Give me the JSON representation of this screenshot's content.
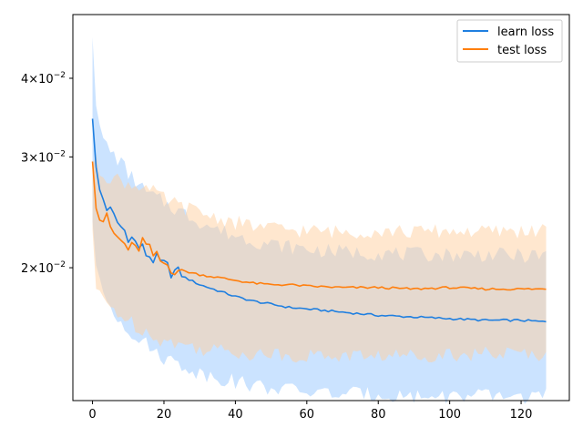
{
  "chart_data": {
    "type": "line",
    "xlabel": "",
    "ylabel": "",
    "xlim": [
      -5.5,
      133.5
    ],
    "ylim": [
      0.0123,
      0.0505
    ],
    "yscale": "log",
    "x_ticks": [
      0,
      20,
      40,
      60,
      80,
      100,
      120
    ],
    "x_tick_labels": [
      "0",
      "20",
      "40",
      "60",
      "80",
      "100",
      "120"
    ],
    "y_ticks": [
      0.02,
      0.03,
      0.04
    ],
    "y_tick_labels": [
      {
        "mantissa": "2",
        "times": "×",
        "base": "10",
        "exp": "−2"
      },
      {
        "mantissa": "3",
        "times": "×",
        "base": "10",
        "exp": "−2"
      },
      {
        "mantissa": "4",
        "times": "×",
        "base": "10",
        "exp": "−2"
      }
    ],
    "grid": false,
    "legend": {
      "position": "top-right"
    },
    "x_range": [
      0,
      127
    ],
    "series": [
      {
        "name": "learn loss",
        "color": "#1f7fe0",
        "band_color": "#a8d0ff",
        "anchors_x": [
          0,
          1,
          2,
          4,
          6,
          8,
          10,
          12,
          15,
          18,
          20,
          25,
          30,
          35,
          40,
          45,
          50,
          55,
          60,
          70,
          80,
          90,
          100,
          110,
          120,
          127
        ],
        "mean": [
          0.0345,
          0.0285,
          0.0265,
          0.025,
          0.024,
          0.0232,
          0.0226,
          0.0219,
          0.0211,
          0.0205,
          0.0201,
          0.0194,
          0.0188,
          0.0184,
          0.018,
          0.0177,
          0.0175,
          0.0173,
          0.0172,
          0.017,
          0.0168,
          0.0167,
          0.0166,
          0.0165,
          0.0165,
          0.0164
        ],
        "upper": [
          0.0475,
          0.037,
          0.033,
          0.0312,
          0.0302,
          0.0294,
          0.0282,
          0.0275,
          0.0263,
          0.0258,
          0.0254,
          0.0245,
          0.0237,
          0.023,
          0.0225,
          0.0221,
          0.0218,
          0.0216,
          0.0214,
          0.0212,
          0.0211,
          0.021,
          0.021,
          0.021,
          0.0209,
          0.0209
        ],
        "lower": [
          0.024,
          0.02,
          0.0188,
          0.0178,
          0.017,
          0.0165,
          0.016,
          0.0156,
          0.0151,
          0.0147,
          0.0144,
          0.014,
          0.0136,
          0.0134,
          0.0132,
          0.013,
          0.0129,
          0.0128,
          0.0127,
          0.0126,
          0.0126,
          0.0125,
          0.0125,
          0.0125,
          0.0125,
          0.0125
        ]
      },
      {
        "name": "test loss",
        "color": "#ff7f0e",
        "band_color": "#ffcfa0",
        "anchors_x": [
          0,
          1,
          2,
          4,
          6,
          8,
          10,
          12,
          14,
          16,
          18,
          20,
          25,
          30,
          35,
          40,
          45,
          50,
          55,
          60,
          70,
          80,
          90,
          100,
          110,
          120,
          127
        ],
        "mean": [
          0.0295,
          0.0255,
          0.024,
          0.0238,
          0.0226,
          0.022,
          0.0215,
          0.0213,
          0.022,
          0.0212,
          0.0207,
          0.0203,
          0.0198,
          0.0195,
          0.0193,
          0.0191,
          0.0189,
          0.0188,
          0.0188,
          0.0187,
          0.0186,
          0.0186,
          0.0185,
          0.0186,
          0.0185,
          0.0185,
          0.0185
        ],
        "upper": [
          0.029,
          0.0295,
          0.0285,
          0.028,
          0.0278,
          0.0275,
          0.0272,
          0.027,
          0.0272,
          0.0265,
          0.0262,
          0.0257,
          0.025,
          0.0245,
          0.024,
          0.0236,
          0.0233,
          0.0231,
          0.023,
          0.0229,
          0.0228,
          0.0229,
          0.0228,
          0.0229,
          0.0228,
          0.0229,
          0.0229
        ],
        "lower": [
          0.023,
          0.0185,
          0.018,
          0.0175,
          0.0172,
          0.0168,
          0.0165,
          0.0162,
          0.016,
          0.0157,
          0.0155,
          0.0153,
          0.0151,
          0.0149,
          0.0148,
          0.0147,
          0.0146,
          0.0146,
          0.0145,
          0.0145,
          0.0145,
          0.0145,
          0.0145,
          0.0146,
          0.0146,
          0.0146,
          0.0146
        ]
      }
    ]
  }
}
